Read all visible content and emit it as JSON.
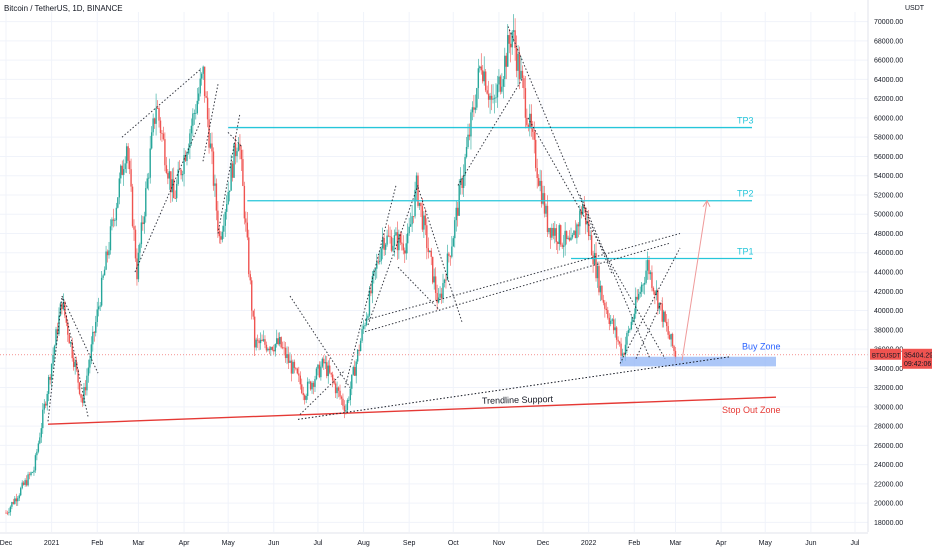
{
  "header": {
    "title": "Bitcoin / TetherUS, 1D, BINANCE"
  },
  "chart_data": {
    "type": "candlestick",
    "currency": "USDT",
    "y_ticks": [
      18000,
      20000,
      22000,
      24000,
      26000,
      28000,
      30000,
      32000,
      34000,
      36000,
      38000,
      40000,
      42000,
      44000,
      46000,
      48000,
      50000,
      52000,
      54000,
      56000,
      58000,
      60000,
      62000,
      64000,
      66000,
      68000,
      70000
    ],
    "y_tick_labels": [
      "18000.00",
      "20000.00",
      "22000.00",
      "24000.00",
      "26000.00",
      "28000.00",
      "30000.00",
      "32000.00",
      "34000.00",
      "36000.00",
      "38000.00",
      "40000.00",
      "42000.00",
      "44000.00",
      "46000.00",
      "48000.00",
      "50000.00",
      "52000.00",
      "54000.00",
      "56000.00",
      "58000.00",
      "60000.00",
      "62000.00",
      "64000.00",
      "66000.00",
      "68000.00",
      "70000.00"
    ],
    "ylim": [
      17000,
      71000
    ],
    "x_ticks": [
      "Dec",
      "2021",
      "Feb",
      "Mar",
      "Apr",
      "May",
      "Jun",
      "Jul",
      "Aug",
      "Sep",
      "Oct",
      "Nov",
      "Dec",
      "2022",
      "Feb",
      "Mar",
      "Apr",
      "May",
      "Jun",
      "Jul"
    ],
    "price_path": [
      [
        "2020-12-01",
        19000
      ],
      [
        "2020-12-20",
        23500
      ],
      [
        "2021-01-08",
        41000
      ],
      [
        "2021-01-22",
        30500
      ],
      [
        "2021-02-08",
        46000
      ],
      [
        "2021-02-21",
        57500
      ],
      [
        "2021-02-28",
        44000
      ],
      [
        "2021-03-13",
        61500
      ],
      [
        "2021-03-25",
        51500
      ],
      [
        "2021-04-14",
        64500
      ],
      [
        "2021-04-25",
        47500
      ],
      [
        "2021-05-08",
        58500
      ],
      [
        "2021-05-19",
        36500
      ],
      [
        "2021-06-05",
        36500
      ],
      [
        "2021-06-22",
        31500
      ],
      [
        "2021-07-05",
        34500
      ],
      [
        "2021-07-20",
        29800
      ],
      [
        "2021-08-14",
        47500
      ],
      [
        "2021-08-31",
        47000
      ],
      [
        "2021-09-06",
        52800
      ],
      [
        "2021-09-21",
        40500
      ],
      [
        "2021-10-01",
        48000
      ],
      [
        "2021-10-20",
        66000
      ],
      [
        "2021-10-28",
        61000
      ],
      [
        "2021-11-10",
        69000
      ],
      [
        "2021-12-04",
        49000
      ],
      [
        "2021-12-20",
        46500
      ],
      [
        "2021-12-28",
        51000
      ],
      [
        "2022-01-10",
        41500
      ],
      [
        "2022-01-24",
        35500
      ],
      [
        "2022-02-10",
        44800
      ],
      [
        "2022-02-24",
        37500
      ],
      [
        "2022-03-01",
        35404
      ]
    ],
    "last_price": {
      "symbol": "BTCUSDT",
      "value": "35404.29",
      "countdown": "09:42:06",
      "color": "#ef5350"
    },
    "levels": [
      {
        "name": "TP3",
        "value": 59000,
        "color": "#26c6da"
      },
      {
        "name": "TP2",
        "value": 51400,
        "color": "#26c6da"
      },
      {
        "name": "TP1",
        "value": 45400,
        "color": "#26c6da"
      }
    ],
    "zones": [
      {
        "name": "Buy Zone",
        "low": 34200,
        "high": 35200,
        "color": "#90b4f5"
      }
    ],
    "trendlines": [
      {
        "name": "Trendline Support",
        "color": "#131722",
        "style": "dotted"
      },
      {
        "name": "Stop Out Zone",
        "color": "#e53935",
        "style": "solid"
      }
    ],
    "colors": {
      "up": "#26a69a",
      "down": "#ef5350",
      "grid": "#f0f3fa"
    }
  }
}
